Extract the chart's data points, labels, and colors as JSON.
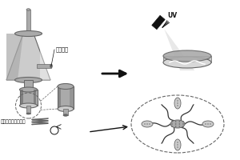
{
  "label_bioink": "生物墨水",
  "label_scaffold": "小口径管状结构支架",
  "label_UV": "UV",
  "gray_light": "#cccccc",
  "gray_mid": "#aaaaaa",
  "gray_dark": "#666666",
  "gray_darker": "#333333",
  "white": "#ffffff",
  "black": "#111111",
  "dish_fill": "#bbbbbb",
  "dish_inner": "#d8d8d8"
}
